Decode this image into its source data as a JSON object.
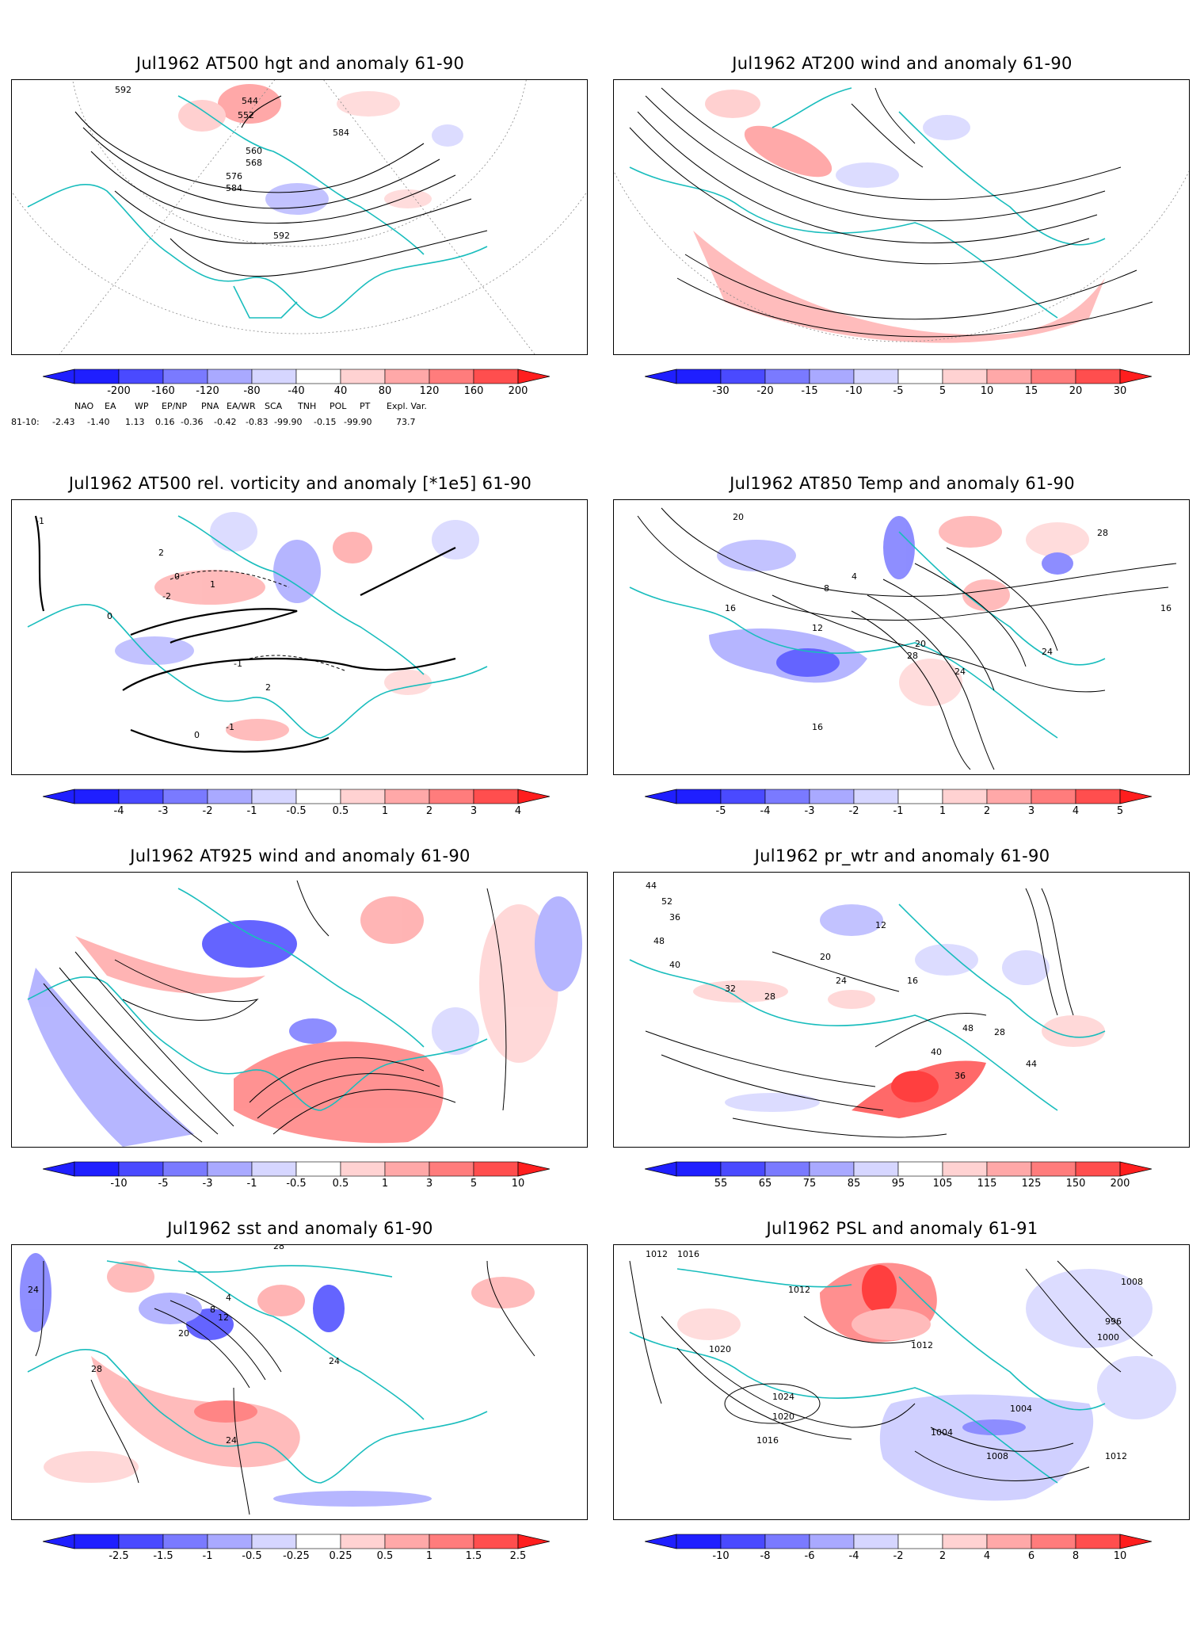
{
  "panels": [
    {
      "id": "p1",
      "title": "Jul1962 AT500 hgt and anomaly 61-90",
      "levels": [
        "-200",
        "-160",
        "-120",
        "-80",
        "-40",
        "40",
        "80",
        "120",
        "160",
        "200"
      ],
      "contour_labels": [
        "592",
        "544",
        "552",
        "584",
        "560",
        "568",
        "576",
        "584",
        "592"
      ]
    },
    {
      "id": "p2",
      "title": "Jul1962 AT200 wind and anomaly 61-90",
      "levels": [
        "-30",
        "-20",
        "-15",
        "-10",
        "-5",
        "5",
        "10",
        "15",
        "20",
        "30"
      ],
      "contour_labels": []
    },
    {
      "id": "p3",
      "title": "Jul1962 AT500 rel. vorticity and anomaly [*1e5] 61-90",
      "levels": [
        "-4",
        "-3",
        "-2",
        "-1",
        "-0.5",
        "0.5",
        "1",
        "2",
        "3",
        "4"
      ],
      "contour_labels": [
        "-1",
        "2",
        "0",
        "1",
        "-2",
        "0",
        "-1",
        "2",
        "-1",
        "0"
      ]
    },
    {
      "id": "p4",
      "title": "Jul1962 AT850 Temp and anomaly 61-90",
      "levels": [
        "-5",
        "-4",
        "-3",
        "-2",
        "-1",
        "1",
        "2",
        "3",
        "4",
        "5"
      ],
      "contour_labels": [
        "20",
        "28",
        "16",
        "16",
        "8",
        "12",
        "20",
        "28",
        "24",
        "24",
        "16",
        "4"
      ]
    },
    {
      "id": "p5",
      "title": "Jul1962 AT925 wind and anomaly 61-90",
      "levels": [
        "-10",
        "-5",
        "-3",
        "-1",
        "-0.5",
        "0.5",
        "1",
        "3",
        "5",
        "10"
      ],
      "contour_labels": []
    },
    {
      "id": "p6",
      "title": "Jul1962 pr_wtr and anomaly 61-90",
      "levels": [
        "55",
        "65",
        "75",
        "85",
        "95",
        "105",
        "115",
        "125",
        "150",
        "200"
      ],
      "contour_labels": [
        "44",
        "52",
        "36",
        "48",
        "40",
        "32",
        "28",
        "24",
        "20",
        "16",
        "12",
        "40",
        "48",
        "36",
        "44",
        "28"
      ]
    },
    {
      "id": "p7",
      "title": "Jul1962 sst and anomaly 61-90",
      "levels": [
        "-2.5",
        "-1.5",
        "-1",
        "-0.5",
        "-0.25",
        "0.25",
        "0.5",
        "1",
        "1.5",
        "2.5"
      ],
      "contour_labels": [
        "28",
        "24",
        "20",
        "12",
        "4",
        "8",
        "24",
        "28",
        "24"
      ]
    },
    {
      "id": "p8",
      "title": "Jul1962 PSL and anomaly 61-91",
      "levels": [
        "-10",
        "-8",
        "-6",
        "-4",
        "-2",
        "2",
        "4",
        "6",
        "8",
        "10"
      ],
      "contour_labels": [
        "1012",
        "1016",
        "1012",
        "1020",
        "1024",
        "1020",
        "1016",
        "1012",
        "1008",
        "1004",
        "1000",
        "996",
        "1008",
        "1004",
        "1012"
      ]
    }
  ],
  "teleconnections": {
    "headers": [
      "NAO",
      "EA",
      "WP",
      "EP/NP",
      "PNA",
      "EA/WR",
      "SCA",
      "TNH",
      "POL",
      "PT",
      "Expl. Var."
    ],
    "row_label": "81-10:",
    "values": [
      "-2.43",
      "-1.40",
      "1.13",
      "0.16",
      "-0.36",
      "-0.42",
      "-0.83",
      "-99.90",
      "-0.15",
      "-99.90",
      "73.7"
    ]
  },
  "colors": {
    "blues": [
      "#1f1fff",
      "#4a4aff",
      "#7a7aff",
      "#a9a9ff",
      "#d6d6ff"
    ],
    "reds": [
      "#ffd2d2",
      "#ffa8a8",
      "#ff7c7c",
      "#ff4e4e",
      "#ff1e1e"
    ],
    "coast": "#19bdbd"
  }
}
